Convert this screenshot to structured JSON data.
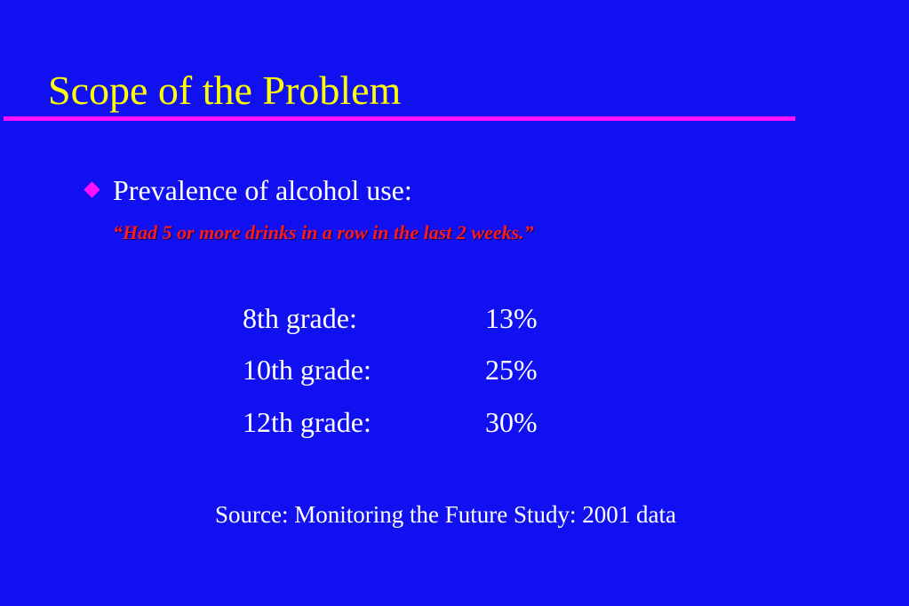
{
  "slide": {
    "title": "Scope of the Problem",
    "bullet": "Prevalence of alcohol use:",
    "quote": "“Had 5 or more drinks in a row in the last 2 weeks.”",
    "rows": [
      {
        "grade": "8th grade:",
        "percent": "13%"
      },
      {
        "grade": "10th grade:",
        "percent": "25%"
      },
      {
        "grade": "12th grade:",
        "percent": "30%"
      }
    ],
    "source": "Source: Monitoring the Future Study: 2001 data"
  },
  "colors": {
    "background": "#1010f0",
    "title": "#ffff00",
    "rule": "#ff10ff",
    "bullet_marker": "#ff10ff",
    "text": "#ffffff",
    "quote": "#ff1a1a"
  },
  "icons": {
    "bullet_marker": "diamond-bullet-icon"
  }
}
